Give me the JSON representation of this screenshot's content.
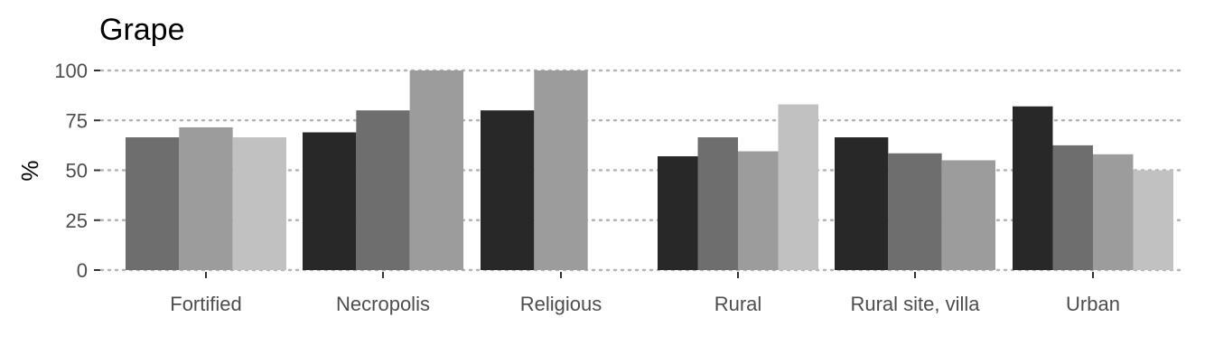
{
  "chart_data": {
    "type": "bar",
    "title": "Grape",
    "xlabel": "",
    "ylabel": "%",
    "ylim": [
      0,
      100
    ],
    "yticks": [
      0,
      25,
      50,
      75,
      100
    ],
    "grid": "horizontal dotted",
    "legend": "none",
    "categories": [
      "Fortified",
      "Necropolis",
      "Religious",
      "Rural",
      "Rural site, villa",
      "Urban"
    ],
    "groups": [
      {
        "category": "Fortified",
        "bars": [
          {
            "value": 66.5,
            "color": "#6e6e6e"
          },
          {
            "value": 71.5,
            "color": "#9c9c9c"
          },
          {
            "value": 66.5,
            "color": "#c1c1c1"
          }
        ]
      },
      {
        "category": "Necropolis",
        "bars": [
          {
            "value": 69,
            "color": "#282828"
          },
          {
            "value": 80,
            "color": "#6e6e6e"
          },
          {
            "value": 100,
            "color": "#9c9c9c"
          }
        ]
      },
      {
        "category": "Religious",
        "bars": [
          {
            "value": 80,
            "color": "#282828"
          },
          {
            "value": 100,
            "color": "#9c9c9c"
          }
        ],
        "slots": 3
      },
      {
        "category": "Rural",
        "bars": [
          {
            "value": 57,
            "color": "#282828"
          },
          {
            "value": 66.5,
            "color": "#6e6e6e"
          },
          {
            "value": 59.5,
            "color": "#9c9c9c"
          },
          {
            "value": 83,
            "color": "#c1c1c1"
          }
        ]
      },
      {
        "category": "Rural site, villa",
        "bars": [
          {
            "value": 66.5,
            "color": "#282828"
          },
          {
            "value": 58.5,
            "color": "#6e6e6e"
          },
          {
            "value": 55,
            "color": "#9c9c9c"
          }
        ]
      },
      {
        "category": "Urban",
        "bars": [
          {
            "value": 82,
            "color": "#282828"
          },
          {
            "value": 62.5,
            "color": "#6e6e6e"
          },
          {
            "value": 58,
            "color": "#9c9c9c"
          },
          {
            "value": 50,
            "color": "#c1c1c1"
          }
        ]
      }
    ]
  }
}
